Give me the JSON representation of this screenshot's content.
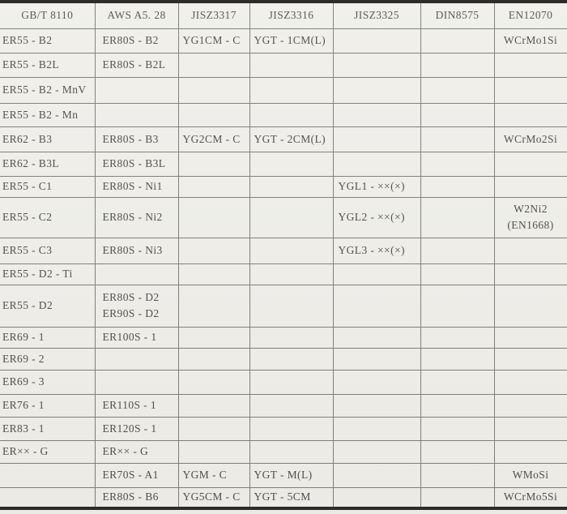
{
  "document": {
    "type": "welding-wire-standards-comparison-table",
    "columns": [
      "GB/T 8110",
      "AWS A5. 28",
      "JISZ3317",
      "JISZ3316",
      "JISZ3325",
      "DIN8575",
      "EN12070"
    ],
    "rows": [
      [
        "ER55 - B2",
        "ER80S - B2",
        "YG1CM - C",
        "YGT - 1CM(L)",
        "",
        "",
        "WCrMo1Si"
      ],
      [
        "ER55 - B2L",
        "ER80S - B2L",
        "",
        "",
        "",
        "",
        ""
      ],
      [
        "ER55 - B2 - MnV",
        "",
        "",
        "",
        "",
        "",
        ""
      ],
      [
        "ER55 - B2 - Mn",
        "",
        "",
        "",
        "",
        "",
        ""
      ],
      [
        "ER62 - B3",
        "ER80S - B3",
        "YG2CM - C",
        "YGT - 2CM(L)",
        "",
        "",
        "WCrMo2Si"
      ],
      [
        "ER62 - B3L",
        "ER80S - B3L",
        "",
        "",
        "",
        "",
        ""
      ],
      [
        "ER55 - C1",
        "ER80S - Ni1",
        "",
        "",
        "YGL1 - ××(×)",
        "",
        ""
      ],
      [
        "ER55 - C2",
        "ER80S - Ni2",
        "",
        "",
        "YGL2 - ××(×)",
        "",
        "W2Ni2\n(EN1668)"
      ],
      [
        "ER55 - C3",
        "ER80S - Ni3",
        "",
        "",
        "YGL3 - ××(×)",
        "",
        ""
      ],
      [
        "ER55 - D2 - Ti",
        "",
        "",
        "",
        "",
        "",
        ""
      ],
      [
        "ER55 - D2",
        "ER80S - D2\nER90S - D2",
        "",
        "",
        "",
        "",
        ""
      ],
      [
        "ER69 - 1",
        "ER100S - 1",
        "",
        "",
        "",
        "",
        ""
      ],
      [
        "ER69 - 2",
        "",
        "",
        "",
        "",
        "",
        ""
      ],
      [
        "ER69 - 3",
        "",
        "",
        "",
        "",
        "",
        ""
      ],
      [
        "ER76 - 1",
        "ER110S - 1",
        "",
        "",
        "",
        "",
        ""
      ],
      [
        "ER83 - 1",
        "ER120S - 1",
        "",
        "",
        "",
        "",
        ""
      ],
      [
        "ER×× - G",
        "ER×× - G",
        "",
        "",
        "",
        "",
        ""
      ],
      [
        "",
        "ER70S - A1",
        "YGM - C",
        "YGT - M(L)",
        "",
        "",
        "WMoSi"
      ],
      [
        "",
        "ER80S - B6",
        "YG5CM - C",
        "YGT - 5CM",
        "",
        "",
        "WCrMo5Si"
      ]
    ]
  },
  "colors": {
    "page_background": "#f0efea",
    "grid_line": "#7e7d77",
    "heavy_rule": "#222120",
    "text": "#4d4c49"
  }
}
